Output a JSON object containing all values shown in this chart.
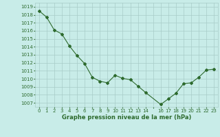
{
  "x": [
    0,
    1,
    2,
    3,
    4,
    5,
    6,
    7,
    8,
    9,
    10,
    11,
    12,
    13,
    14,
    16,
    17,
    18,
    19,
    20,
    21,
    22,
    23
  ],
  "y": [
    1018.5,
    1017.7,
    1016.1,
    1015.6,
    1014.1,
    1012.9,
    1011.9,
    1010.2,
    1009.7,
    1009.5,
    1010.45,
    1010.05,
    1009.9,
    1009.1,
    1008.3,
    1006.8,
    1007.5,
    1008.2,
    1009.4,
    1009.5,
    1010.2,
    1011.1,
    1011.2
  ],
  "line_color": "#2d6a2d",
  "marker": "D",
  "marker_size": 2.0,
  "bg_color": "#c8ece8",
  "grid_color": "#a8ccc8",
  "title": "Graphe pression niveau de la mer (hPa)",
  "ylim": [
    1006.5,
    1019.5
  ],
  "yticks": [
    1007,
    1008,
    1009,
    1010,
    1011,
    1012,
    1013,
    1014,
    1015,
    1016,
    1017,
    1018,
    1019
  ],
  "xtick_labels": [
    "0",
    "1",
    "2",
    "3",
    "4",
    "5",
    "6",
    "7",
    "8",
    "9",
    "10",
    "11",
    "12",
    "13",
    "14",
    "",
    "16",
    "17",
    "18",
    "19",
    "20",
    "21",
    "22",
    "23"
  ],
  "title_color": "#2d6a2d",
  "title_fontsize": 6.0,
  "tick_fontsize": 5.0,
  "tick_color": "#2d6a2d",
  "linewidth": 0.8
}
